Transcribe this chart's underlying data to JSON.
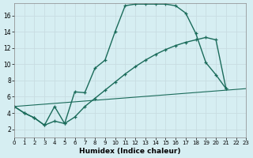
{
  "xlabel": "Humidex (Indice chaleur)",
  "background_color": "#d6eef2",
  "grid_color": "#c8dde2",
  "line_color": "#1a6b5a",
  "xlim": [
    0,
    23
  ],
  "ylim": [
    1,
    17.5
  ],
  "x_ticks": [
    0,
    1,
    2,
    3,
    4,
    5,
    6,
    7,
    8,
    9,
    10,
    11,
    12,
    13,
    14,
    15,
    16,
    17,
    18,
    19,
    20,
    21,
    22,
    23
  ],
  "y_ticks": [
    2,
    4,
    6,
    8,
    10,
    12,
    14,
    16
  ],
  "line1_x": [
    0,
    1,
    2,
    3,
    4,
    5,
    6,
    7,
    8,
    9,
    10,
    11,
    12,
    13,
    14,
    15,
    16,
    17,
    18,
    19,
    20,
    21
  ],
  "line1_y": [
    4.8,
    4.0,
    3.4,
    2.5,
    4.8,
    2.7,
    6.6,
    6.5,
    9.5,
    10.5,
    14.0,
    17.2,
    17.4,
    17.4,
    17.4,
    17.4,
    17.2,
    16.3,
    13.8,
    10.2,
    8.7,
    7.0
  ],
  "line2_x": [
    0,
    1,
    2,
    3,
    4,
    5,
    6,
    7,
    8,
    9,
    10,
    11,
    12,
    13,
    14,
    15,
    16,
    17,
    18,
    19,
    20,
    21
  ],
  "line2_y": [
    4.8,
    4.0,
    3.4,
    2.5,
    3.0,
    2.7,
    3.5,
    4.8,
    5.8,
    6.8,
    7.8,
    8.8,
    9.7,
    10.5,
    11.2,
    11.8,
    12.3,
    12.7,
    13.0,
    13.3,
    13.0,
    7.0
  ],
  "line3_x": [
    0,
    23
  ],
  "line3_y": [
    4.8,
    7.0
  ]
}
